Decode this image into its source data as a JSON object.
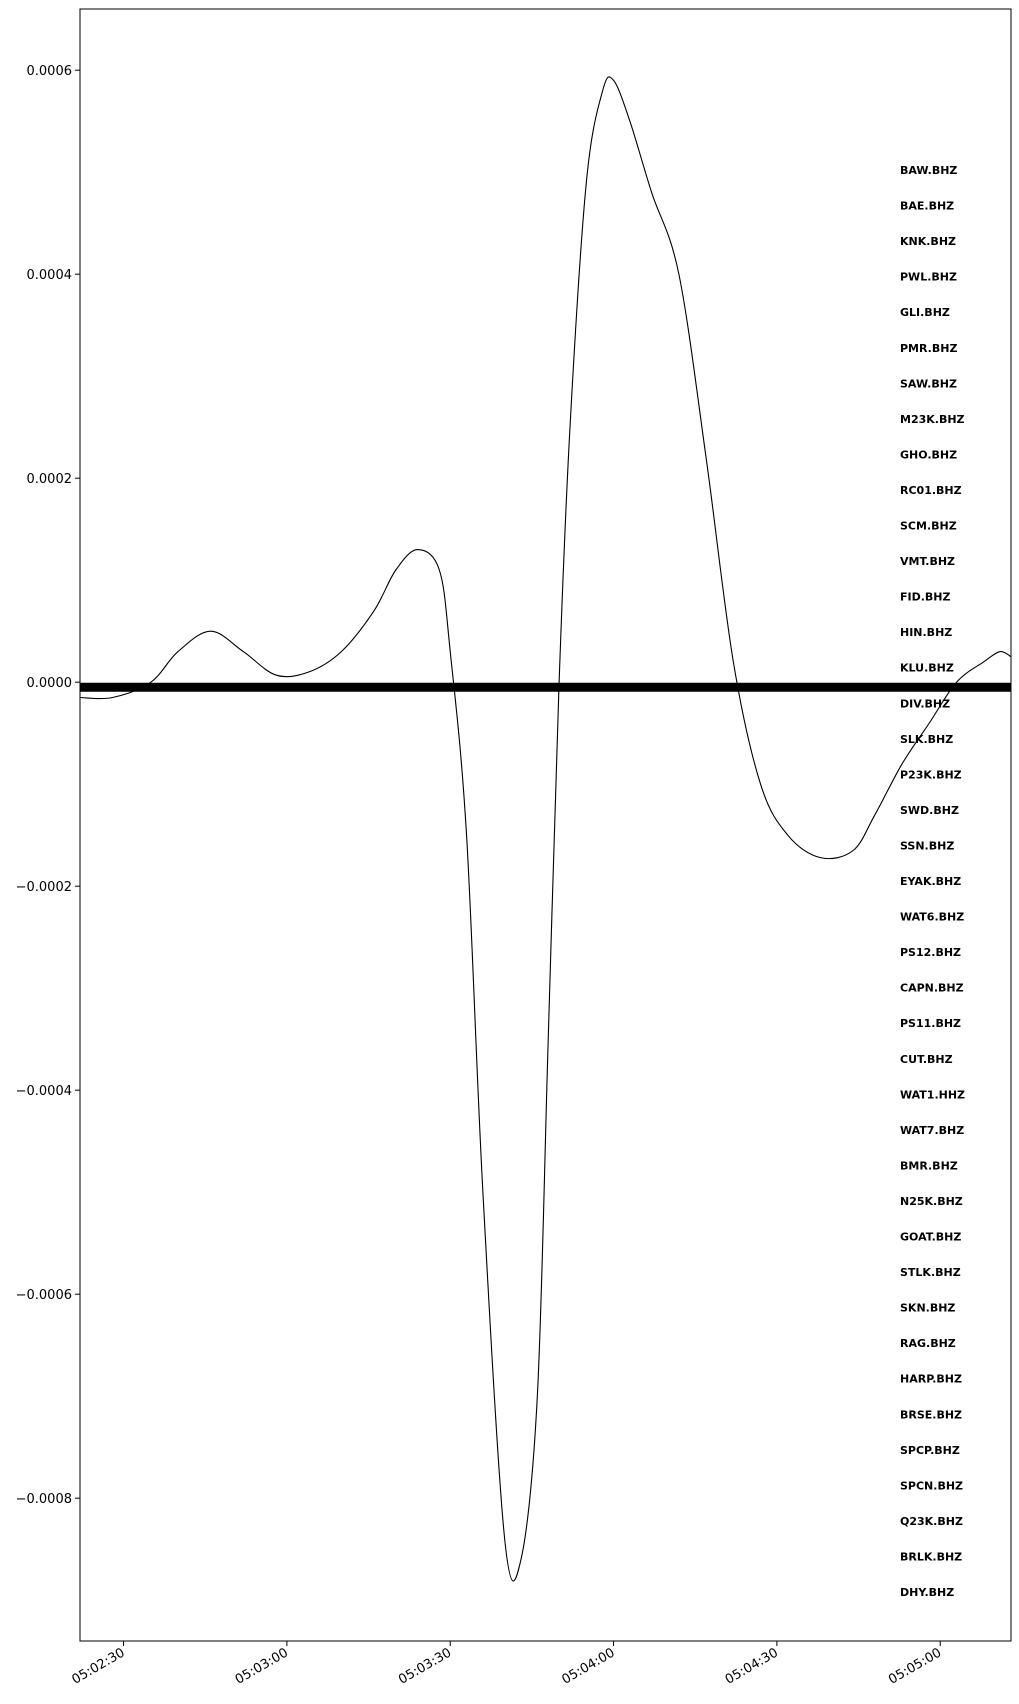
{
  "chart_data": {
    "type": "line",
    "title": "",
    "xlabel": "",
    "ylabel": "",
    "xlim": [
      "05:02:22",
      "05:05:13"
    ],
    "ylim": [
      -0.00094,
      0.00066
    ],
    "grid": false,
    "x_ticks": [
      "05:02:30",
      "05:03:00",
      "05:03:30",
      "05:04:00",
      "05:04:30",
      "05:05:00"
    ],
    "y_ticks": [
      {
        "value": 0.0006,
        "label": "0.0006"
      },
      {
        "value": 0.0004,
        "label": "0.0004"
      },
      {
        "value": 0.0002,
        "label": "0.0002"
      },
      {
        "value": 0.0,
        "label": "0.0000"
      },
      {
        "value": -0.0002,
        "label": "−0.0002"
      },
      {
        "value": -0.0004,
        "label": "−0.0004"
      },
      {
        "value": -0.0006,
        "label": "−0.0006"
      },
      {
        "value": -0.0008,
        "label": "−0.0008"
      }
    ],
    "series": [
      {
        "color": "#000000",
        "time": [
          "05:02:22",
          "05:02:28",
          "05:02:35",
          "05:02:40",
          "05:02:46",
          "05:02:52",
          "05:02:58",
          "05:03:04",
          "05:03:10",
          "05:03:16",
          "05:03:20",
          "05:03:24",
          "05:03:28",
          "05:03:30",
          "05:03:33",
          "05:03:36",
          "05:03:40",
          "05:03:43",
          "05:03:46",
          "05:03:48",
          "05:03:50",
          "05:03:52",
          "05:03:55",
          "05:03:58",
          "05:04:00",
          "05:04:03",
          "05:04:07",
          "05:04:12",
          "05:04:17",
          "05:04:22",
          "05:04:27",
          "05:04:32",
          "05:04:38",
          "05:04:44",
          "05:04:48",
          "05:04:53",
          "05:04:58",
          "05:05:03",
          "05:05:08",
          "05:05:11",
          "05:05:13"
        ],
        "values": [
          -1.5e-05,
          -1.5e-05,
          0.0,
          3e-05,
          5e-05,
          3e-05,
          7e-06,
          1e-05,
          3e-05,
          7e-05,
          0.00011,
          0.00013,
          0.00011,
          3e-05,
          -0.00015,
          -0.0005,
          -0.00084,
          -0.00086,
          -0.0007,
          -0.00035,
          0.0,
          0.00025,
          0.00049,
          0.00058,
          0.00059,
          0.00055,
          0.00048,
          0.0004,
          0.00022,
          2e-05,
          -0.0001,
          -0.00015,
          -0.000172,
          -0.000165,
          -0.00013,
          -8e-05,
          -4e-05,
          0.0,
          2e-05,
          3e-05,
          2.5e-05
        ]
      }
    ],
    "baseline_band": {
      "value": -5e-06,
      "color": "#000000"
    },
    "station_labels": [
      "BAW.BHZ",
      "BAE.BHZ",
      "KNK.BHZ",
      "PWL.BHZ",
      "GLI.BHZ",
      "PMR.BHZ",
      "SAW.BHZ",
      "M23K.BHZ",
      "GHO.BHZ",
      "RC01.BHZ",
      "SCM.BHZ",
      "VMT.BHZ",
      "FID.BHZ",
      "HIN.BHZ",
      "KLU.BHZ",
      "DIV.BHZ",
      "SLK.BHZ",
      "P23K.BHZ",
      "SWD.BHZ",
      "SSN.BHZ",
      "EYAK.BHZ",
      "WAT6.BHZ",
      "PS12.BHZ",
      "CAPN.BHZ",
      "PS11.BHZ",
      "CUT.BHZ",
      "WAT1.HHZ",
      "WAT7.BHZ",
      "BMR.BHZ",
      "N25K.BHZ",
      "GOAT.BHZ",
      "STLK.BHZ",
      "SKN.BHZ",
      "RAG.BHZ",
      "HARP.BHZ",
      "BRSE.BHZ",
      "SPCP.BHZ",
      "SPCN.BHZ",
      "Q23K.BHZ",
      "BRLK.BHZ",
      "DHY.BHZ"
    ]
  }
}
